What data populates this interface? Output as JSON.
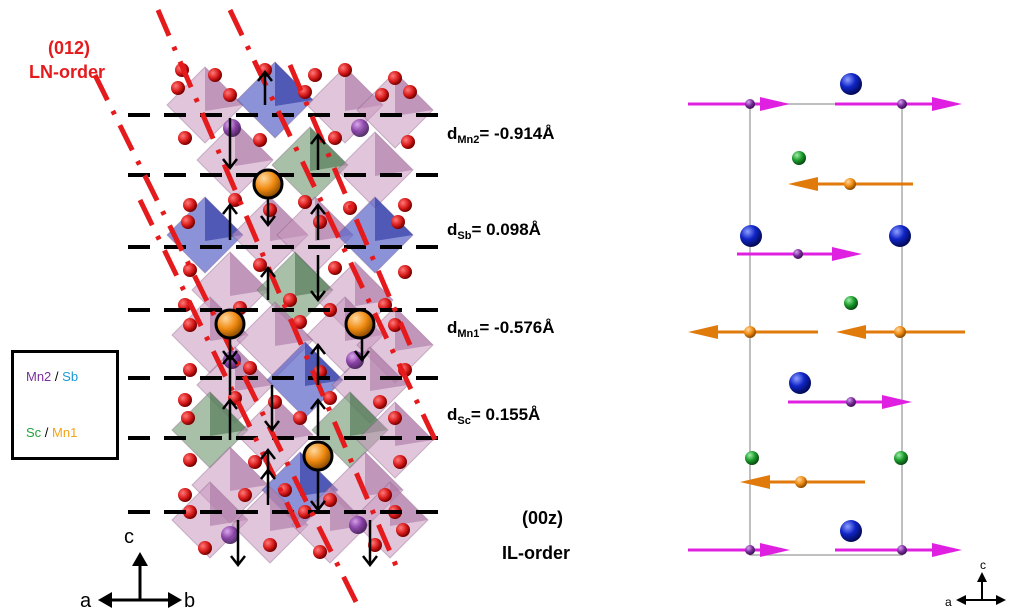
{
  "left_panel": {
    "plane_label": "(012)",
    "ln_order": "LN-order",
    "d_spacings": [
      {
        "main": "d",
        "sub": "Mn2",
        "value": "= -0.914Å"
      },
      {
        "main": "d",
        "sub": "Sb",
        "value": "= 0.098Å"
      },
      {
        "main": "d",
        "sub": "Mn1",
        "value": "= -0.576Å"
      },
      {
        "main": "d",
        "sub": "Sc",
        "value": "= 0.155Å"
      }
    ],
    "il_plane": "(00z)",
    "il_order": "IL-order",
    "legend": {
      "mn2": "Mn2",
      "slash": "/",
      "sb": "Sb",
      "sc": "Sc",
      "mn1": "Mn1"
    },
    "axes": {
      "c": "c",
      "a": "a",
      "b": "b"
    }
  },
  "right_panel": {
    "axes": {
      "c": "c",
      "a": "a"
    }
  },
  "colors": {
    "mn2": "#7b2f9e",
    "sb": "#1a9ad6",
    "sc": "#22a33a",
    "mn1": "#f4a31c",
    "oxygen": "#d91b1b",
    "magenta_spin": "#e020e0",
    "orange_spin": "#e07a0a",
    "blue_atom": "#1025c8",
    "green_atom": "#1a9a2a",
    "red_line": "#e41a1c"
  }
}
